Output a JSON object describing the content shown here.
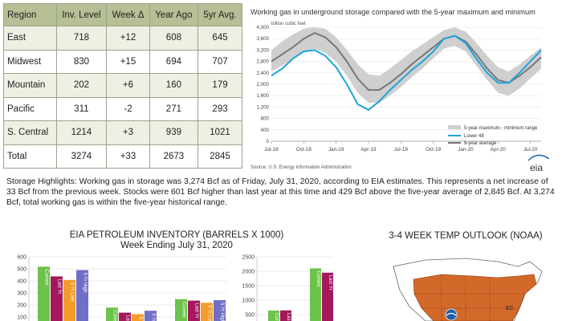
{
  "table": {
    "headers": [
      "Region",
      "Inv. Level",
      "Week Δ",
      "Year Ago",
      "5yr Avg."
    ],
    "rows": [
      [
        "East",
        "718",
        "+12",
        "608",
        "645"
      ],
      [
        "Midwest",
        "830",
        "+15",
        "694",
        "707"
      ],
      [
        "Mountain",
        "202",
        "+6",
        "160",
        "179"
      ],
      [
        "Pacific",
        "311",
        "-2",
        "271",
        "293"
      ],
      [
        "S. Central",
        "1214",
        "+3",
        "939",
        "1021"
      ],
      [
        "Total",
        "3274",
        "+33",
        "2673",
        "2845"
      ]
    ]
  },
  "highlights": "Storage Highlights:  Working gas in storage was 3,274 Bcf as of Friday, July 31, 2020, according to EIA estimates. This represents a net increase of 33 Bcf from the previous week. Stocks were 601 Bcf higher than last year at this time and 429 Bcf above the five-year average of 2,845 Bcf. At 3,274 Bcf, total working gas is within the five-year historical range.",
  "colors": {
    "lower48": "#1ca3dc",
    "avg": "#777777",
    "range": "#cfcfcf",
    "current_bar": "#6cc24a",
    "last_bar": "#a3195b",
    "low_bar": "#f39c2c",
    "high_bar": "#6f6fc8"
  },
  "chart_data": [
    {
      "type": "area",
      "title": "Working gas in underground storage compared with the 5-year maximum and minimum",
      "ylabel": "billion cubic feet",
      "ylim": [
        0,
        4000
      ],
      "yticks": [
        "0",
        "400",
        "800",
        "1,200",
        "1,600",
        "2,000",
        "2,400",
        "2,800",
        "3,200",
        "3,600",
        "4,000"
      ],
      "xticks": [
        "Jul-18",
        "Oct-18",
        "Jan-19",
        "Apr-19",
        "Jul-19",
        "Oct-19",
        "Jan-20",
        "Apr-20",
        "Jul-20"
      ],
      "legend": [
        "5-year maximum - minimum range",
        "Lower 48",
        "5-year average"
      ],
      "legend_position": "bottom-right",
      "source": "Source:  U.S. Energy Information Administration",
      "logo": "eia",
      "x_months": [
        0,
        1,
        2,
        3,
        4,
        5,
        6,
        7,
        8,
        9,
        10,
        11,
        12,
        13,
        14,
        15,
        16,
        17,
        18,
        19,
        20,
        21,
        22,
        23,
        24,
        25
      ],
      "series": [
        {
          "name": "Lower 48",
          "x": [
            0,
            1,
            2,
            3,
            4,
            5,
            6,
            7,
            8,
            9,
            10,
            11,
            12,
            13,
            14,
            15,
            16,
            17,
            18,
            19,
            20,
            21,
            22,
            23,
            24,
            25
          ],
          "values": [
            2300,
            2550,
            2900,
            3150,
            3200,
            3000,
            2600,
            2000,
            1300,
            1100,
            1400,
            1800,
            2150,
            2500,
            2800,
            3150,
            3600,
            3700,
            3450,
            2900,
            2400,
            2050,
            2050,
            2400,
            2800,
            3200
          ]
        },
        {
          "name": "5-year average",
          "x": [
            0,
            1,
            2,
            3,
            4,
            5,
            6,
            7,
            8,
            9,
            10,
            11,
            12,
            13,
            14,
            15,
            16,
            17,
            18,
            19,
            20,
            21,
            22,
            23,
            24,
            25
          ],
          "values": [
            2800,
            3050,
            3300,
            3600,
            3800,
            3650,
            3300,
            2800,
            2200,
            1800,
            1800,
            2050,
            2350,
            2700,
            3000,
            3300,
            3600,
            3700,
            3500,
            3050,
            2550,
            2150,
            2050,
            2300,
            2600,
            2950
          ]
        },
        {
          "name": "5-year maximum",
          "x": [
            0,
            1,
            2,
            3,
            4,
            5,
            6,
            7,
            8,
            9,
            10,
            11,
            12,
            13,
            14,
            15,
            16,
            17,
            18,
            19,
            20,
            21,
            22,
            23,
            24,
            25
          ],
          "values": [
            3200,
            3500,
            3750,
            3950,
            4000,
            3950,
            3650,
            3200,
            2700,
            2350,
            2300,
            2550,
            2850,
            3150,
            3400,
            3650,
            3900,
            4000,
            3850,
            3450,
            3000,
            2600,
            2450,
            2700,
            3000,
            3300
          ]
        },
        {
          "name": "5-year minimum",
          "x": [
            0,
            1,
            2,
            3,
            4,
            5,
            6,
            7,
            8,
            9,
            10,
            11,
            12,
            13,
            14,
            15,
            16,
            17,
            18,
            19,
            20,
            21,
            22,
            23,
            24,
            25
          ],
          "values": [
            2450,
            2650,
            2900,
            3150,
            3250,
            3100,
            2800,
            2300,
            1700,
            1350,
            1350,
            1600,
            1900,
            2250,
            2550,
            2900,
            3250,
            3350,
            3150,
            2650,
            2150,
            1700,
            1600,
            1850,
            2200,
            2550
          ]
        }
      ]
    },
    {
      "type": "bar",
      "title": "EIA PETROLEUM INVENTORY (BARRELS X 1000)",
      "subtitle": "Week Ending July 31, 2020",
      "ylim": [
        0,
        600
      ],
      "yticks": [
        "0",
        "100",
        "200",
        "300",
        "400",
        "500",
        "600"
      ],
      "bar_labels": [
        "Current",
        "Last Yr",
        "5 Yr Low",
        "5 Yr High"
      ],
      "groups": [
        {
          "values": [
            518,
            437,
            408,
            490
          ]
        },
        {
          "values": [
            178,
            136,
            123,
            152
          ]
        },
        {
          "values": [
            248,
            236,
            218,
            240
          ]
        }
      ]
    },
    {
      "type": "bar",
      "ylim": [
        0,
        2500
      ],
      "yticks": [
        "0",
        "500",
        "1000",
        "1500",
        "2000",
        "2500"
      ],
      "bar_labels": [
        "Current",
        "Last Yr"
      ],
      "groups": [
        {
          "values": [
            640,
            645
          ]
        },
        {
          "values": [
            2100,
            1950
          ]
        }
      ]
    }
  ],
  "temp_outlook": {
    "title": "3-4 WEEK TEMP OUTLOOK (NOAA)",
    "region_labels": [
      "EC"
    ]
  }
}
